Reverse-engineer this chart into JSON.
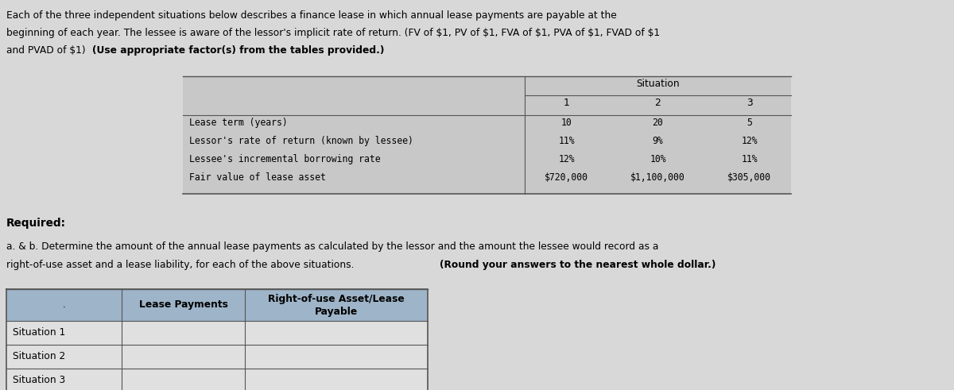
{
  "header_line1": "Each of the three independent situations below describes a finance lease in which annual lease payments are payable at the",
  "header_line2": "beginning of each year. The lessee is aware of the lessor's implicit rate of return. (FV of $1, PV of $1, FVA of $1, PVA of $1, FVAD of $1",
  "header_line3_plain": "and PVAD of $1) ",
  "header_line3_bold": "(Use appropriate factor(s) from the tables provided.)",
  "table1_title": "Situation",
  "table1_cols": [
    "1",
    "2",
    "3"
  ],
  "table1_rows": [
    [
      "Lease term (years)",
      "10",
      "20",
      "5"
    ],
    [
      "Lessor's rate of return (known by lessee)",
      "11%",
      "9%",
      "12%"
    ],
    [
      "Lessee's incremental borrowing rate",
      "12%",
      "10%",
      "11%"
    ],
    [
      "Fair value of lease asset",
      "$720,000",
      "$1,100,000",
      "$305,000"
    ]
  ],
  "required_label": "Required:",
  "ab_line1": "a. & b. Determine the amount of the annual lease payments as calculated by the lessor and the amount the lessee would record as a",
  "ab_line2_plain": "right-of-use asset and a lease liability, for each of the above situations. ",
  "ab_line2_bold": "(Round your answers to the nearest whole dollar.)",
  "table2_col1_header": ".",
  "table2_col2_header": "Lease Payments",
  "table2_col3_header_line1": "Right-of-use Asset/Lease",
  "table2_col3_header_line2": "Payable",
  "table2_rows": [
    "Situation 1",
    "Situation 2",
    "Situation 3"
  ],
  "bg_color": "#d8d8d8",
  "table1_bg": "#c8c8c8",
  "table2_header_bg": "#9eb4c8",
  "table2_row_bg": "#e0e0e0",
  "border_color": "#555555",
  "text_color": "#000000"
}
